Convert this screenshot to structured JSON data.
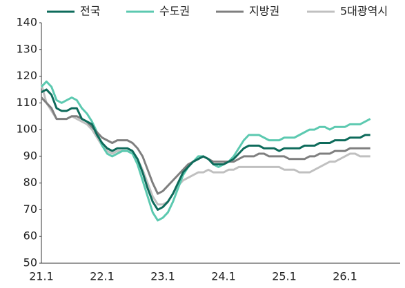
{
  "chart_data": {
    "type": "line",
    "categories": [
      "21.1",
      null,
      null,
      null,
      null,
      null,
      null,
      null,
      null,
      null,
      null,
      null,
      "22.1",
      null,
      null,
      null,
      null,
      null,
      null,
      null,
      null,
      null,
      null,
      null,
      "23.1",
      null,
      null,
      null,
      null,
      null,
      null,
      null,
      null,
      null,
      null,
      null,
      "24.1",
      null,
      null,
      null,
      null,
      null,
      null,
      null,
      null,
      null,
      null,
      null,
      "25.1",
      null,
      null,
      null,
      null,
      null,
      null,
      null,
      null,
      null,
      null,
      null,
      "26.1",
      null,
      null,
      null,
      null,
      null
    ],
    "series": [
      {
        "name": "전국",
        "color": "#0e6b5b",
        "values": [
          114,
          115,
          113,
          108,
          107,
          107,
          108,
          108,
          104,
          103,
          102,
          98,
          95,
          93,
          92,
          93,
          93,
          93,
          92,
          89,
          84,
          78,
          73,
          70,
          71,
          73,
          76,
          80,
          84,
          86,
          88,
          89,
          90,
          89,
          87,
          87,
          87,
          88,
          89,
          91,
          93,
          94,
          94,
          94,
          93,
          93,
          93,
          92,
          93,
          93,
          93,
          93,
          94,
          94,
          94,
          95,
          95,
          95,
          96,
          96,
          96,
          97,
          97,
          97,
          98,
          98
        ]
      },
      {
        "name": "수도권",
        "color": "#5cc9b0",
        "values": [
          116,
          118,
          116,
          111,
          110,
          111,
          112,
          111,
          108,
          106,
          103,
          99,
          94,
          91,
          90,
          91,
          92,
          92,
          91,
          87,
          81,
          75,
          69,
          66,
          67,
          69,
          73,
          78,
          83,
          86,
          88,
          90,
          90,
          89,
          87,
          86,
          87,
          88,
          90,
          93,
          96,
          98,
          98,
          98,
          97,
          96,
          96,
          96,
          97,
          97,
          97,
          98,
          99,
          100,
          100,
          101,
          101,
          100,
          101,
          101,
          101,
          102,
          102,
          102,
          103,
          104
        ]
      },
      {
        "name": "지방권",
        "color": "#7f7f7f",
        "values": [
          112,
          110,
          108,
          104,
          104,
          104,
          105,
          105,
          104,
          103,
          101,
          99,
          97,
          96,
          95,
          96,
          96,
          96,
          95,
          93,
          90,
          85,
          80,
          76,
          77,
          79,
          81,
          83,
          85,
          87,
          88,
          89,
          90,
          89,
          88,
          88,
          88,
          88,
          88,
          89,
          90,
          90,
          90,
          91,
          91,
          90,
          90,
          90,
          90,
          89,
          89,
          89,
          89,
          90,
          90,
          91,
          91,
          91,
          92,
          92,
          92,
          93,
          93,
          93,
          93,
          93
        ]
      },
      {
        "name": "5대광역시",
        "color": "#c0c0c0",
        "values": [
          117,
          110,
          107,
          104,
          104,
          104,
          105,
          104,
          103,
          102,
          100,
          97,
          94,
          92,
          91,
          92,
          92,
          92,
          91,
          89,
          85,
          80,
          75,
          72,
          72,
          73,
          76,
          79,
          81,
          82,
          83,
          84,
          84,
          85,
          84,
          84,
          84,
          85,
          85,
          86,
          86,
          86,
          86,
          86,
          86,
          86,
          86,
          86,
          85,
          85,
          85,
          84,
          84,
          84,
          85,
          86,
          87,
          88,
          88,
          89,
          90,
          91,
          91,
          90,
          90,
          90
        ]
      }
    ],
    "ylim": [
      50,
      140
    ],
    "yticks": [
      50,
      60,
      70,
      80,
      90,
      100,
      110,
      120,
      130,
      140
    ],
    "grid": false,
    "legend": "top"
  }
}
